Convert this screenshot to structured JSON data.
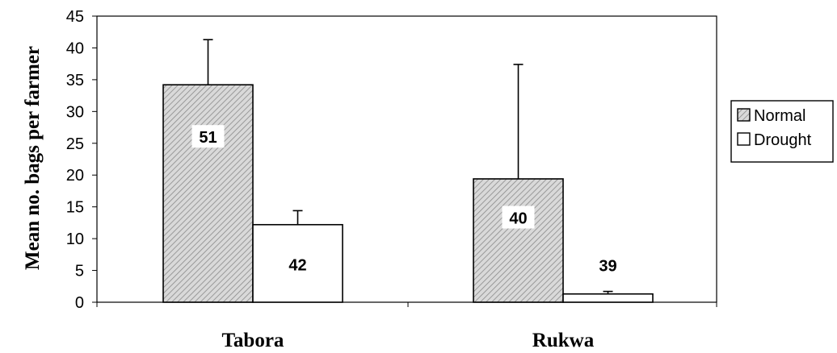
{
  "chart_data": {
    "type": "bar",
    "title": "",
    "xlabel": "",
    "ylabel": "Mean no. bags per farmer",
    "categories": [
      "Tabora",
      "Rukwa"
    ],
    "ylim": [
      0,
      45
    ],
    "yticks": [
      0,
      5,
      10,
      15,
      20,
      25,
      30,
      35,
      40,
      45
    ],
    "grid": false,
    "legend_position": "right",
    "series": [
      {
        "name": "Normal",
        "pattern": "hatched",
        "values": [
          34.2,
          19.4
        ],
        "error": [
          7.1,
          18.0
        ],
        "labels": [
          "51",
          "40"
        ]
      },
      {
        "name": "Drought",
        "pattern": "plain",
        "values": [
          12.2,
          1.3
        ],
        "error": [
          2.2,
          0.4
        ],
        "labels": [
          "42",
          "39"
        ]
      }
    ],
    "colors": {
      "hatch_fill": "#d9d9d9",
      "hatch_line": "#8a8a8a",
      "plain_fill": "#ffffff",
      "line": "#000000"
    }
  }
}
